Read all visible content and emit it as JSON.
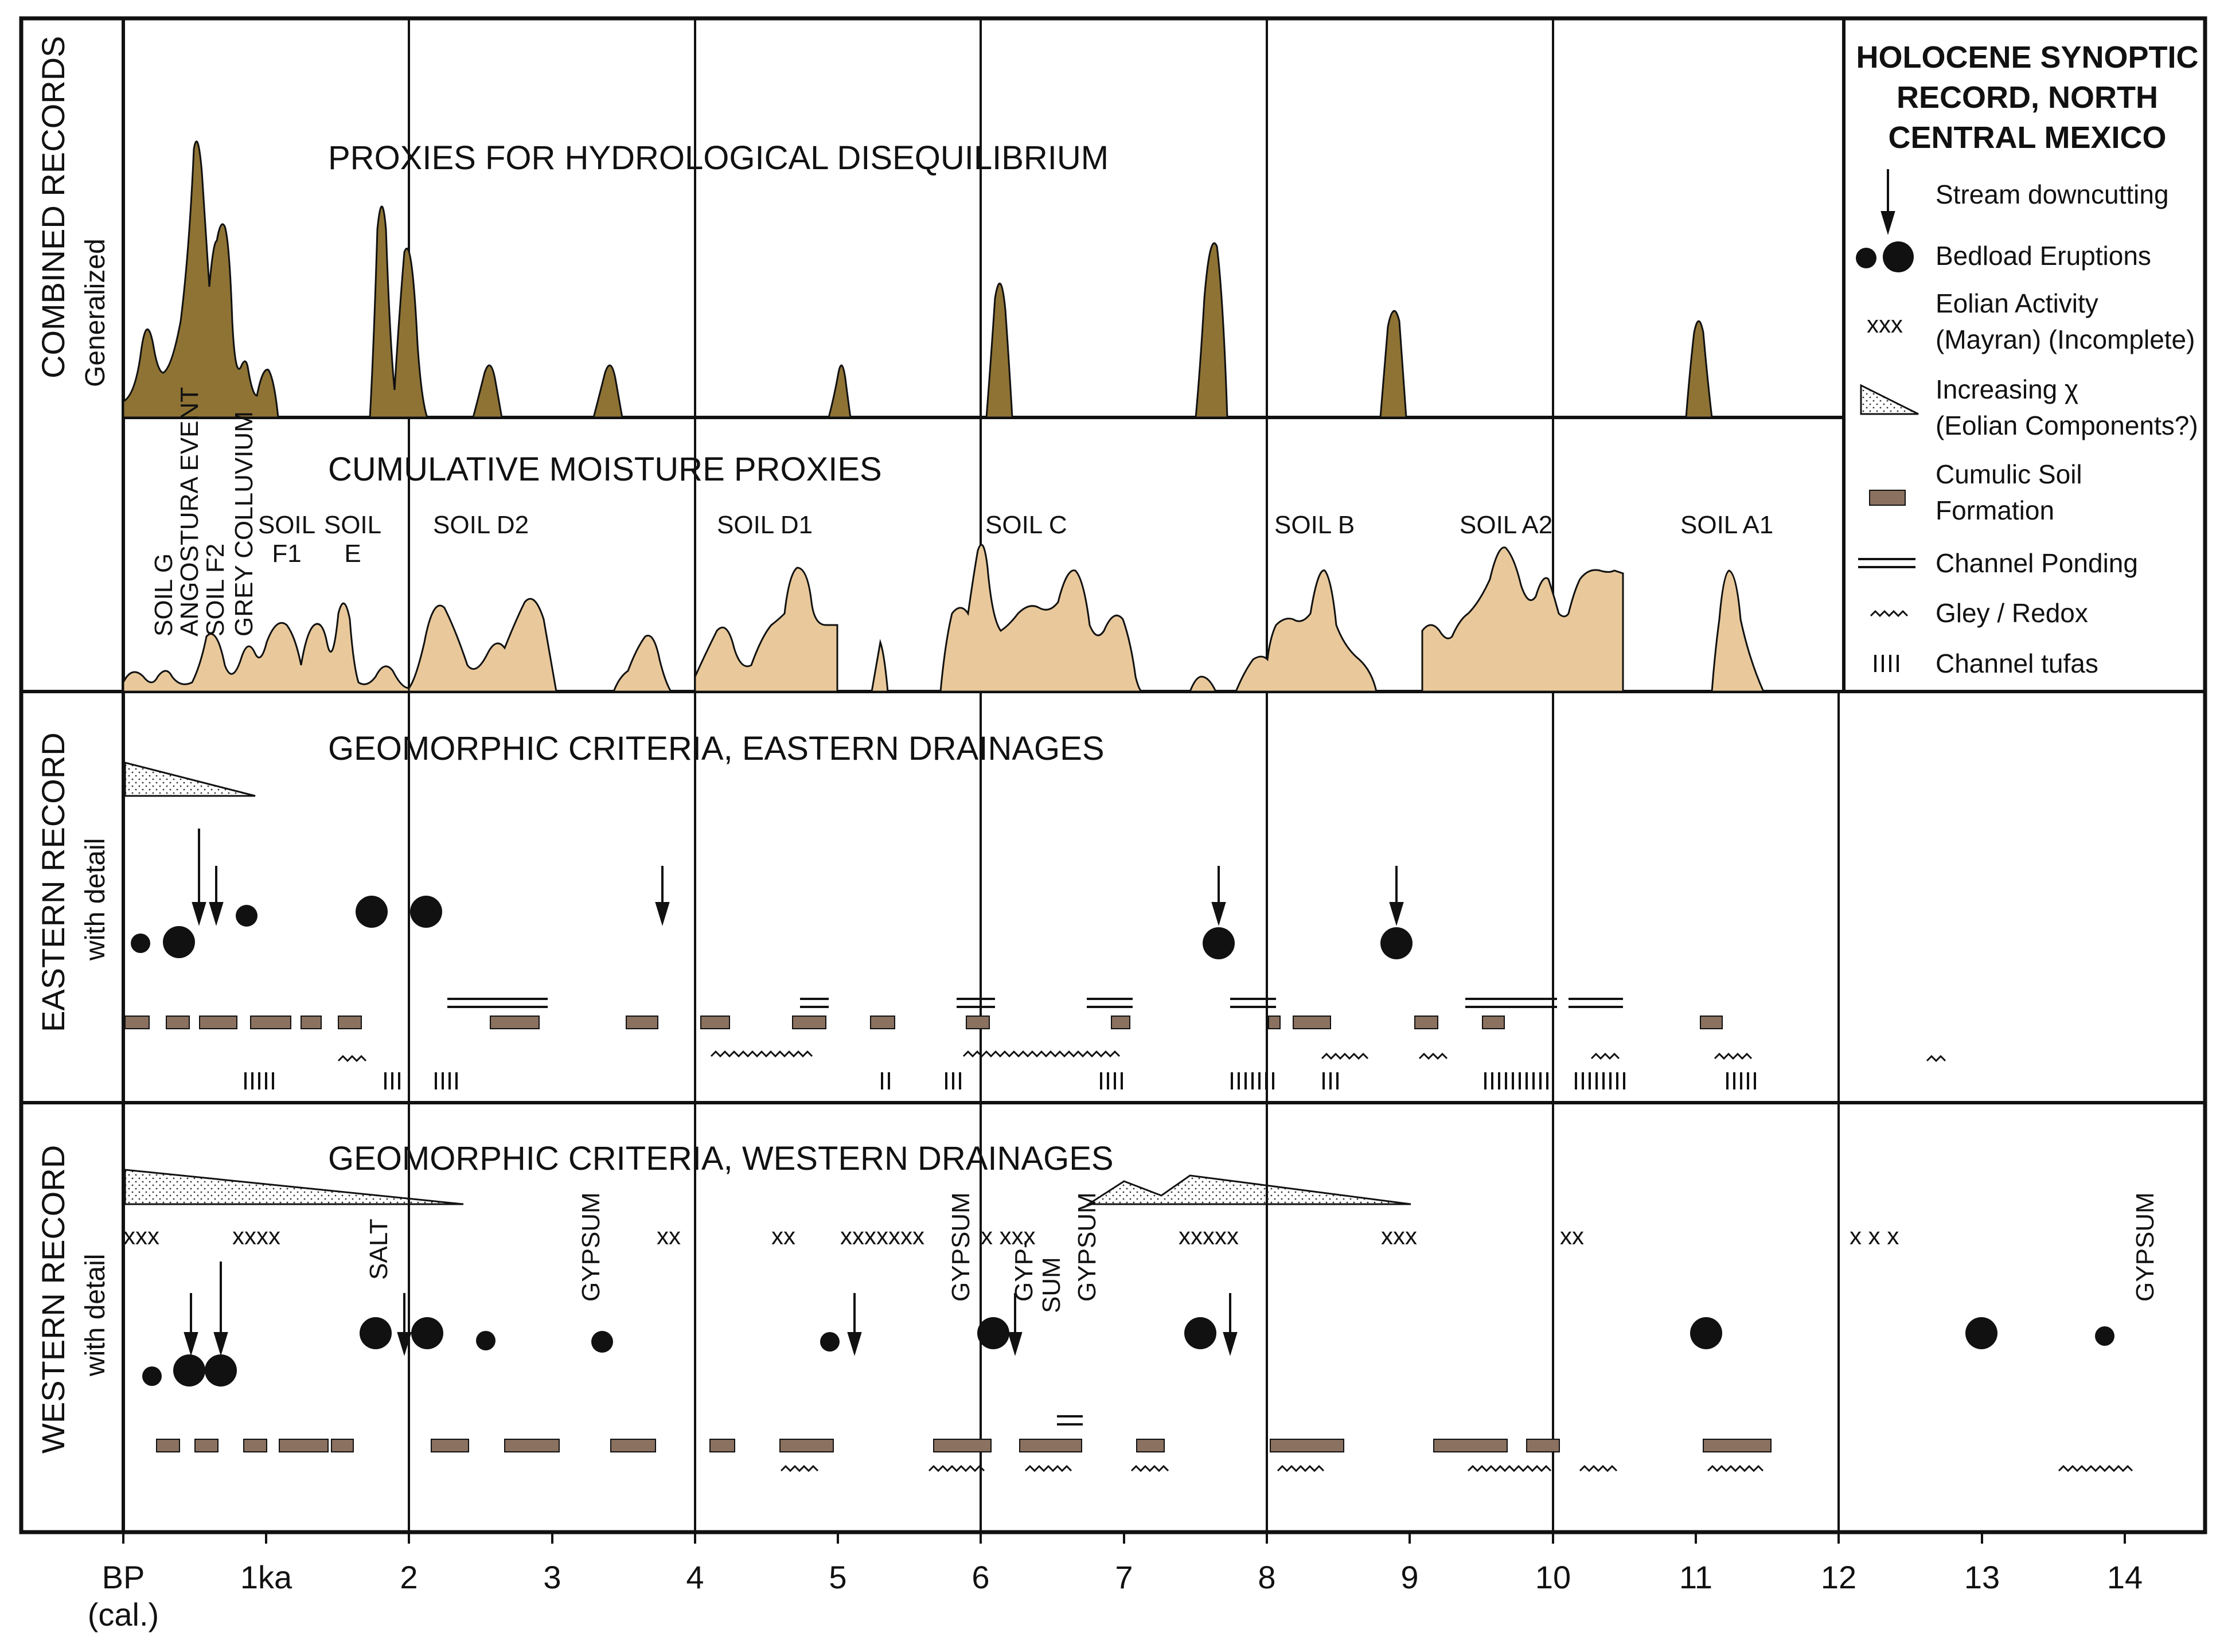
{
  "legend": {
    "title_lines": [
      "HOLOCENE SYNOPTIC",
      "RECORD, NORTH",
      "CENTRAL MEXICO"
    ],
    "stream_downcutting": "Stream downcutting",
    "bedload_eruptions": "Bedload Eruptions",
    "eolian_glyph": "xxx",
    "eolian_line1": "Eolian Activity",
    "eolian_line2": "(Mayran) (Incomplete)",
    "increasing_line1": "Increasing χ",
    "increasing_line2": "(Eolian Components?)",
    "cumulic_line1": "Cumulic Soil",
    "cumulic_line2": "Formation",
    "channel_ponding": "Channel Ponding",
    "gley": "Gley / Redox",
    "tufas": "Channel tufas"
  },
  "side_labels": {
    "combined": "COMBINED RECORDS",
    "combined_sub": "Generalized",
    "eastern": "EASTERN RECORD",
    "eastern_sub": "with detail",
    "western": "WESTERN RECORD",
    "western_sub": "with detail"
  },
  "panels": {
    "hydro_title": "PROXIES FOR HYDROLOGICAL DISEQUILIBRIUM",
    "moisture_title": "CUMULATIVE MOISTURE PROXIES",
    "eastern_title": "GEOMORPHIC CRITERIA, EASTERN DRAINAGES",
    "western_title": "GEOMORPHIC CRITERIA, WESTERN DRAINAGES"
  },
  "soil_labels": {
    "soil_g": "SOIL G",
    "angostura": "ANGOSTURA EVENT",
    "soil_f2": "SOIL F2",
    "grey_colluvium": "GREY COLLUVIUM",
    "soil_f1_a": "SOIL",
    "soil_f1_b": "F1",
    "soil_e_a": "SOIL",
    "soil_e_b": "E",
    "soil_d2": "SOIL D2",
    "soil_d1": "SOIL D1",
    "soil_c": "SOIL C",
    "soil_b": "SOIL B",
    "soil_a2": "SOIL A2",
    "soil_a1": "SOIL A1"
  },
  "western_marks": {
    "xxx_1": "xxx",
    "xxxx": "xxxx",
    "xx_1": "xx",
    "xx_2": "xx",
    "xxxxxxx": "xxxxxxx",
    "x_xxx": "x xxx",
    "xxxxx": "xxxxx",
    "xxx_2": "xxx",
    "xx_3": "xx",
    "x_x_x": "x x x",
    "salt": "SALT",
    "gypsum_1": "GYPSUM",
    "gypsum_2": "GYPSUM",
    "gyp_sum_a": "GYP-",
    "gyp_sum_b": "SUM",
    "gypsum_3": "GYPSUM",
    "gypsum_4": "GYPSUM"
  },
  "axis": {
    "bp": "BP",
    "cal": "(cal.)",
    "ticks": [
      "1ka",
      "2",
      "3",
      "4",
      "5",
      "6",
      "7",
      "8",
      "9",
      "10",
      "11",
      "12",
      "13",
      "14"
    ]
  },
  "colors": {
    "hydro_fill": "#8e7335",
    "moisture_fill": "#e9c99b",
    "soil_bar": "#8b7160",
    "ink": "#111111"
  }
}
